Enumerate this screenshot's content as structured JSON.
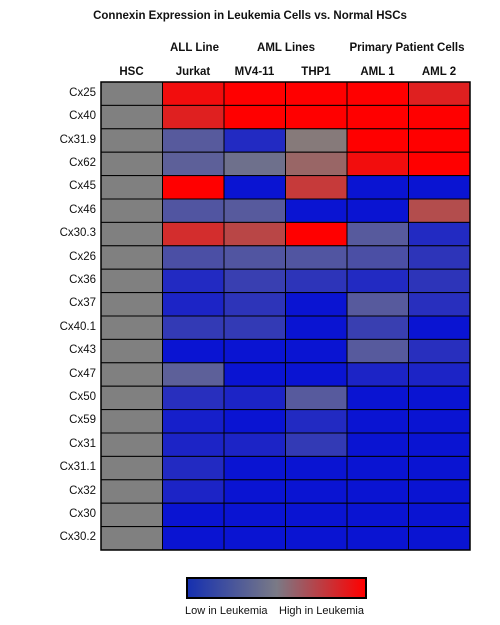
{
  "chart_data": {
    "type": "heatmap",
    "title": "Connexin Expression in Leukemia Cells vs. Normal HSCs",
    "column_groups": [
      {
        "label": "ALL Line",
        "columns": [
          "Jurkat"
        ]
      },
      {
        "label": "AML Lines",
        "columns": [
          "MV4-11",
          "THP1"
        ]
      },
      {
        "label": "Primary Patient Cells",
        "columns": [
          "AML 1",
          "AML 2"
        ]
      }
    ],
    "columns": [
      "HSC",
      "Jurkat",
      "MV4-11",
      "THP1",
      "AML 1",
      "AML 2"
    ],
    "rows": [
      "Cx25",
      "Cx40",
      "Cx31.9",
      "Cx62",
      "Cx45",
      "Cx46",
      "Cx30.3",
      "Cx26",
      "Cx36",
      "Cx37",
      "Cx40.1",
      "Cx43",
      "Cx47",
      "Cx50",
      "Cx59",
      "Cx31",
      "Cx31.1",
      "Cx32",
      "Cx30",
      "Cx30.2"
    ],
    "values": [
      [
        0,
        0.9,
        1.0,
        1.0,
        1.0,
        0.75
      ],
      [
        0,
        0.75,
        1.0,
        1.0,
        1.0,
        1.0
      ],
      [
        0,
        -0.35,
        -0.8,
        0.05,
        1.0,
        1.0
      ],
      [
        0,
        -0.3,
        -0.15,
        0.2,
        0.9,
        1.0
      ],
      [
        0,
        1.0,
        -1.0,
        0.55,
        -1.0,
        -1.0
      ],
      [
        0,
        -0.4,
        -0.35,
        -1.0,
        -1.0,
        0.4
      ],
      [
        0,
        0.65,
        0.45,
        1.0,
        -0.35,
        -0.8
      ],
      [
        0,
        -0.45,
        -0.4,
        -0.4,
        -0.45,
        -0.7
      ],
      [
        0,
        -0.8,
        -0.6,
        -0.7,
        -0.8,
        -0.7
      ],
      [
        0,
        -0.85,
        -0.7,
        -1.0,
        -0.35,
        -0.75
      ],
      [
        0,
        -0.65,
        -0.65,
        -1.0,
        -0.6,
        -1.0
      ],
      [
        0,
        -1.0,
        -1.0,
        -1.0,
        -0.35,
        -0.75
      ],
      [
        0,
        -0.3,
        -1.0,
        -1.0,
        -0.85,
        -0.85
      ],
      [
        0,
        -0.75,
        -0.85,
        -0.35,
        -1.0,
        -1.0
      ],
      [
        0,
        -0.9,
        -1.0,
        -0.8,
        -1.0,
        -1.0
      ],
      [
        0,
        -0.85,
        -0.85,
        -0.65,
        -1.0,
        -1.0
      ],
      [
        0,
        -0.8,
        -1.0,
        -1.0,
        -1.0,
        -1.0
      ],
      [
        0,
        -0.85,
        -1.0,
        -1.0,
        -1.0,
        -1.0
      ],
      [
        0,
        -1.0,
        -1.0,
        -1.0,
        -1.0,
        -1.0
      ],
      [
        0,
        -1.0,
        -1.0,
        -1.0,
        -1.0,
        -1.0
      ]
    ],
    "colorbar": {
      "min_label": "Low in Leukemia",
      "max_label": "High in Leukemia",
      "colors": {
        "low": "#0a14d2",
        "mid": "#808080",
        "high": "#ff0000"
      }
    },
    "grid": true
  }
}
